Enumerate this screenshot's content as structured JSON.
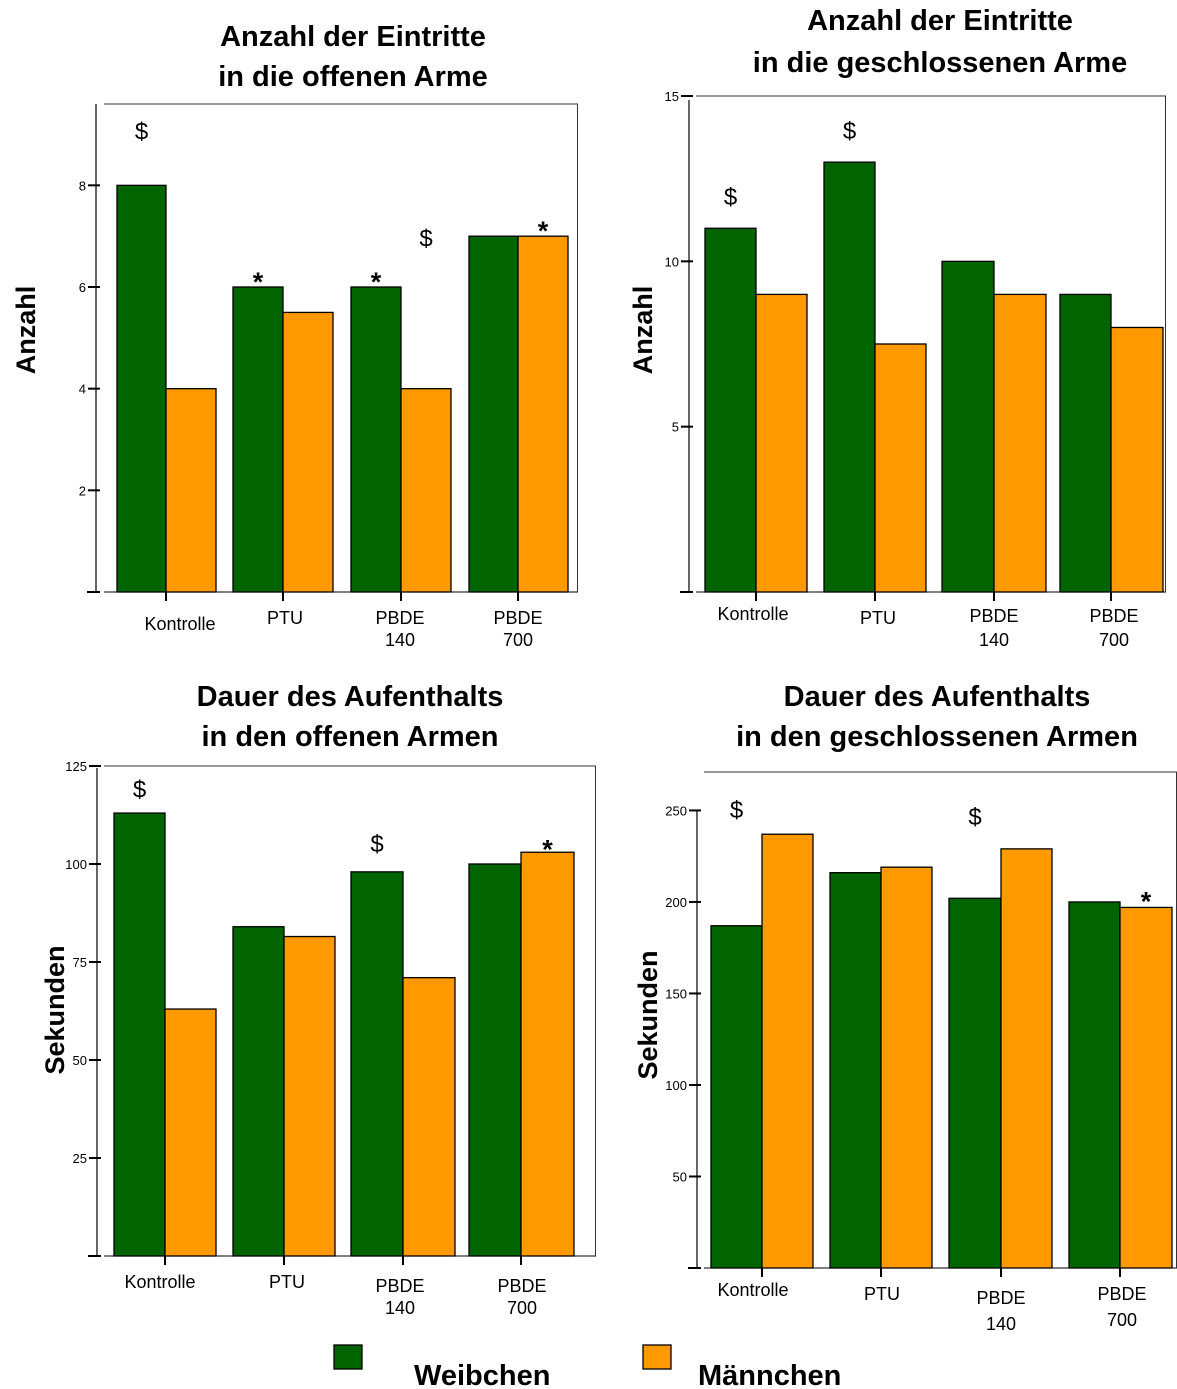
{
  "colors": {
    "weibchen": "#006400",
    "maennchen": "#FF9900"
  },
  "legend": [
    {
      "name": "Weibchen",
      "color": "#006400"
    },
    {
      "name": "Männchen",
      "color": "#FF9900"
    }
  ],
  "chart_data": [
    {
      "type": "bar",
      "title": [
        "Anzahl der Eintritte",
        "in die offenen Arme"
      ],
      "ylabel": "Anzahl",
      "categories": [
        [
          "Kontrolle"
        ],
        [
          "PTU"
        ],
        [
          "PBDE",
          "140"
        ],
        [
          "PBDE",
          "700"
        ]
      ],
      "series": [
        {
          "name": "Weibchen",
          "values": [
            8,
            6,
            6,
            7
          ]
        },
        {
          "name": "Männchen",
          "values": [
            4,
            5.5,
            4,
            7
          ]
        }
      ],
      "yticks": [
        2,
        4,
        6,
        8
      ],
      "ylim": [
        0,
        9.6
      ],
      "annotations": [
        {
          "text": "$",
          "category": 0,
          "series": 0,
          "value": 8.9
        },
        {
          "text": "*",
          "category": 1,
          "series": 0,
          "value": 6.2
        },
        {
          "text": "*",
          "category": 2,
          "series": 0,
          "value": 6.2
        },
        {
          "text": "$",
          "category": 2,
          "series": 1,
          "value": 6.8
        },
        {
          "text": "*",
          "category": 3,
          "series": 1,
          "value": 7.2
        }
      ]
    },
    {
      "type": "bar",
      "title": [
        "Anzahl der Eintritte",
        "in die geschlossenen Arme"
      ],
      "ylabel": "Anzahl",
      "categories": [
        [
          "Kontrolle"
        ],
        [
          "PTU"
        ],
        [
          "PBDE",
          "140"
        ],
        [
          "PBDE",
          "700"
        ]
      ],
      "series": [
        {
          "name": "Weibchen",
          "values": [
            11,
            13,
            10,
            9
          ]
        },
        {
          "name": "Männchen",
          "values": [
            9,
            7.5,
            9,
            8
          ]
        }
      ],
      "yticks": [
        5,
        10,
        15
      ],
      "ylim": [
        0,
        15
      ],
      "annotations": [
        {
          "text": "$",
          "category": 0,
          "series": 0,
          "value": 11.7
        },
        {
          "text": "$",
          "category": 1,
          "series": 0,
          "value": 13.7
        }
      ]
    },
    {
      "type": "bar",
      "title": [
        "Dauer des Aufenthalts",
        "in den offenen Armen"
      ],
      "ylabel": "Sekunden",
      "categories": [
        [
          "Kontrolle"
        ],
        [
          "PTU"
        ],
        [
          "PBDE",
          "140"
        ],
        [
          "PBDE",
          "700"
        ]
      ],
      "series": [
        {
          "name": "Weibchen",
          "values": [
            113,
            84,
            98,
            100
          ]
        },
        {
          "name": "Männchen",
          "values": [
            63,
            81.5,
            71,
            103
          ]
        }
      ],
      "yticks": [
        25,
        50,
        75,
        100,
        125
      ],
      "ylim": [
        0,
        125
      ],
      "annotations": [
        {
          "text": "$",
          "category": 0,
          "series": 0,
          "value": 117
        },
        {
          "text": "$",
          "category": 2,
          "series": 0,
          "value": 103
        },
        {
          "text": "*",
          "category": 3,
          "series": 1,
          "value": 105
        }
      ]
    },
    {
      "type": "bar",
      "title": [
        "Dauer des Aufenthalts",
        "in den geschlossenen Armen"
      ],
      "ylabel": "Sekunden",
      "categories": [
        [
          "Kontrolle"
        ],
        [
          "PTU"
        ],
        [
          "PBDE",
          "140"
        ],
        [
          "PBDE",
          "700"
        ]
      ],
      "series": [
        {
          "name": "Weibchen",
          "values": [
            187,
            216,
            202,
            200
          ]
        },
        {
          "name": "Männchen",
          "values": [
            237,
            219,
            229,
            197
          ]
        }
      ],
      "yticks": [
        50,
        100,
        150,
        200,
        250
      ],
      "ylim": [
        0,
        271
      ],
      "annotations": [
        {
          "text": "$",
          "category": 0,
          "series": 0,
          "value": 246
        },
        {
          "text": "$",
          "category": 2,
          "series": 0,
          "value": 242
        },
        {
          "text": "*",
          "category": 3,
          "series": 1,
          "value": 203
        }
      ]
    }
  ]
}
